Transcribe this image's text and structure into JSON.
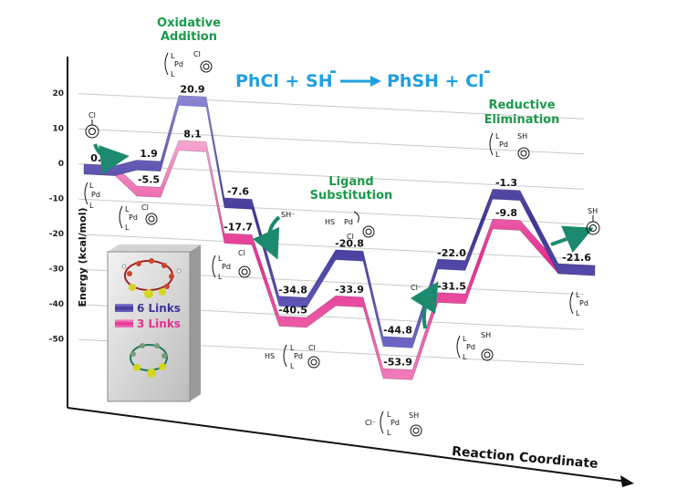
{
  "title": {
    "reactants": "PhCl + SH",
    "minus1": "-",
    "products": "PhSH + Cl",
    "minus2": "-"
  },
  "stages": {
    "oa_line1": "Oxidative",
    "oa_line2": "Addition",
    "ls_line1": "Ligand",
    "ls_line2": "Substitution",
    "re_line1": "Reductive",
    "re_line2": "Elimination"
  },
  "axes": {
    "ylabel": "Energy (kcal/mol)",
    "xlabel": "Reaction Coordinate",
    "yticks": [
      20,
      10,
      0,
      -10,
      -20,
      -30,
      -40,
      -50
    ],
    "ytick_labels": [
      "20",
      "10",
      "0",
      "-10",
      "-20",
      "-30",
      "-40",
      "-50"
    ]
  },
  "legend": {
    "six": "6 Links",
    "three": "3 Links"
  },
  "chem_labels": {
    "cl": "Cl",
    "pd": "Pd",
    "l": "L",
    "sh": "SH",
    "sh_minus": "SH⁻",
    "cl_minus": "Cl⁻",
    "hs": "HS"
  },
  "colors": {
    "six_links": "#5a4fb0",
    "three_links": "#e8409a",
    "stage_text": "#1a9a4a",
    "title_text": "#1f9fe0",
    "arrow": "#1b8a6e"
  },
  "chart_data": {
    "type": "energy-profile",
    "ylim": [
      -60,
      25
    ],
    "series": [
      {
        "name": "6 Links",
        "levels": [
          0.0,
          1.9,
          20.9,
          -7.6,
          -20.8,
          -34.8,
          -44.8,
          -22.0,
          -1.3,
          -21.6
        ],
        "labels": [
          "0.0",
          "1.9",
          "20.9",
          "-7.6",
          "-20.8",
          "-34.8",
          "-44.8",
          "-22.0",
          "-1.3",
          "-21.6"
        ]
      },
      {
        "name": "3 Links",
        "levels": [
          0.0,
          -5.5,
          8.1,
          -17.7,
          -33.9,
          -40.5,
          -53.9,
          -31.5,
          -9.8,
          -21.6
        ],
        "labels": [
          "",
          "-5.5",
          "8.1",
          "-17.7",
          "-33.9",
          "-40.5",
          "-53.9",
          "-31.5",
          "-9.8",
          ""
        ]
      }
    ]
  }
}
